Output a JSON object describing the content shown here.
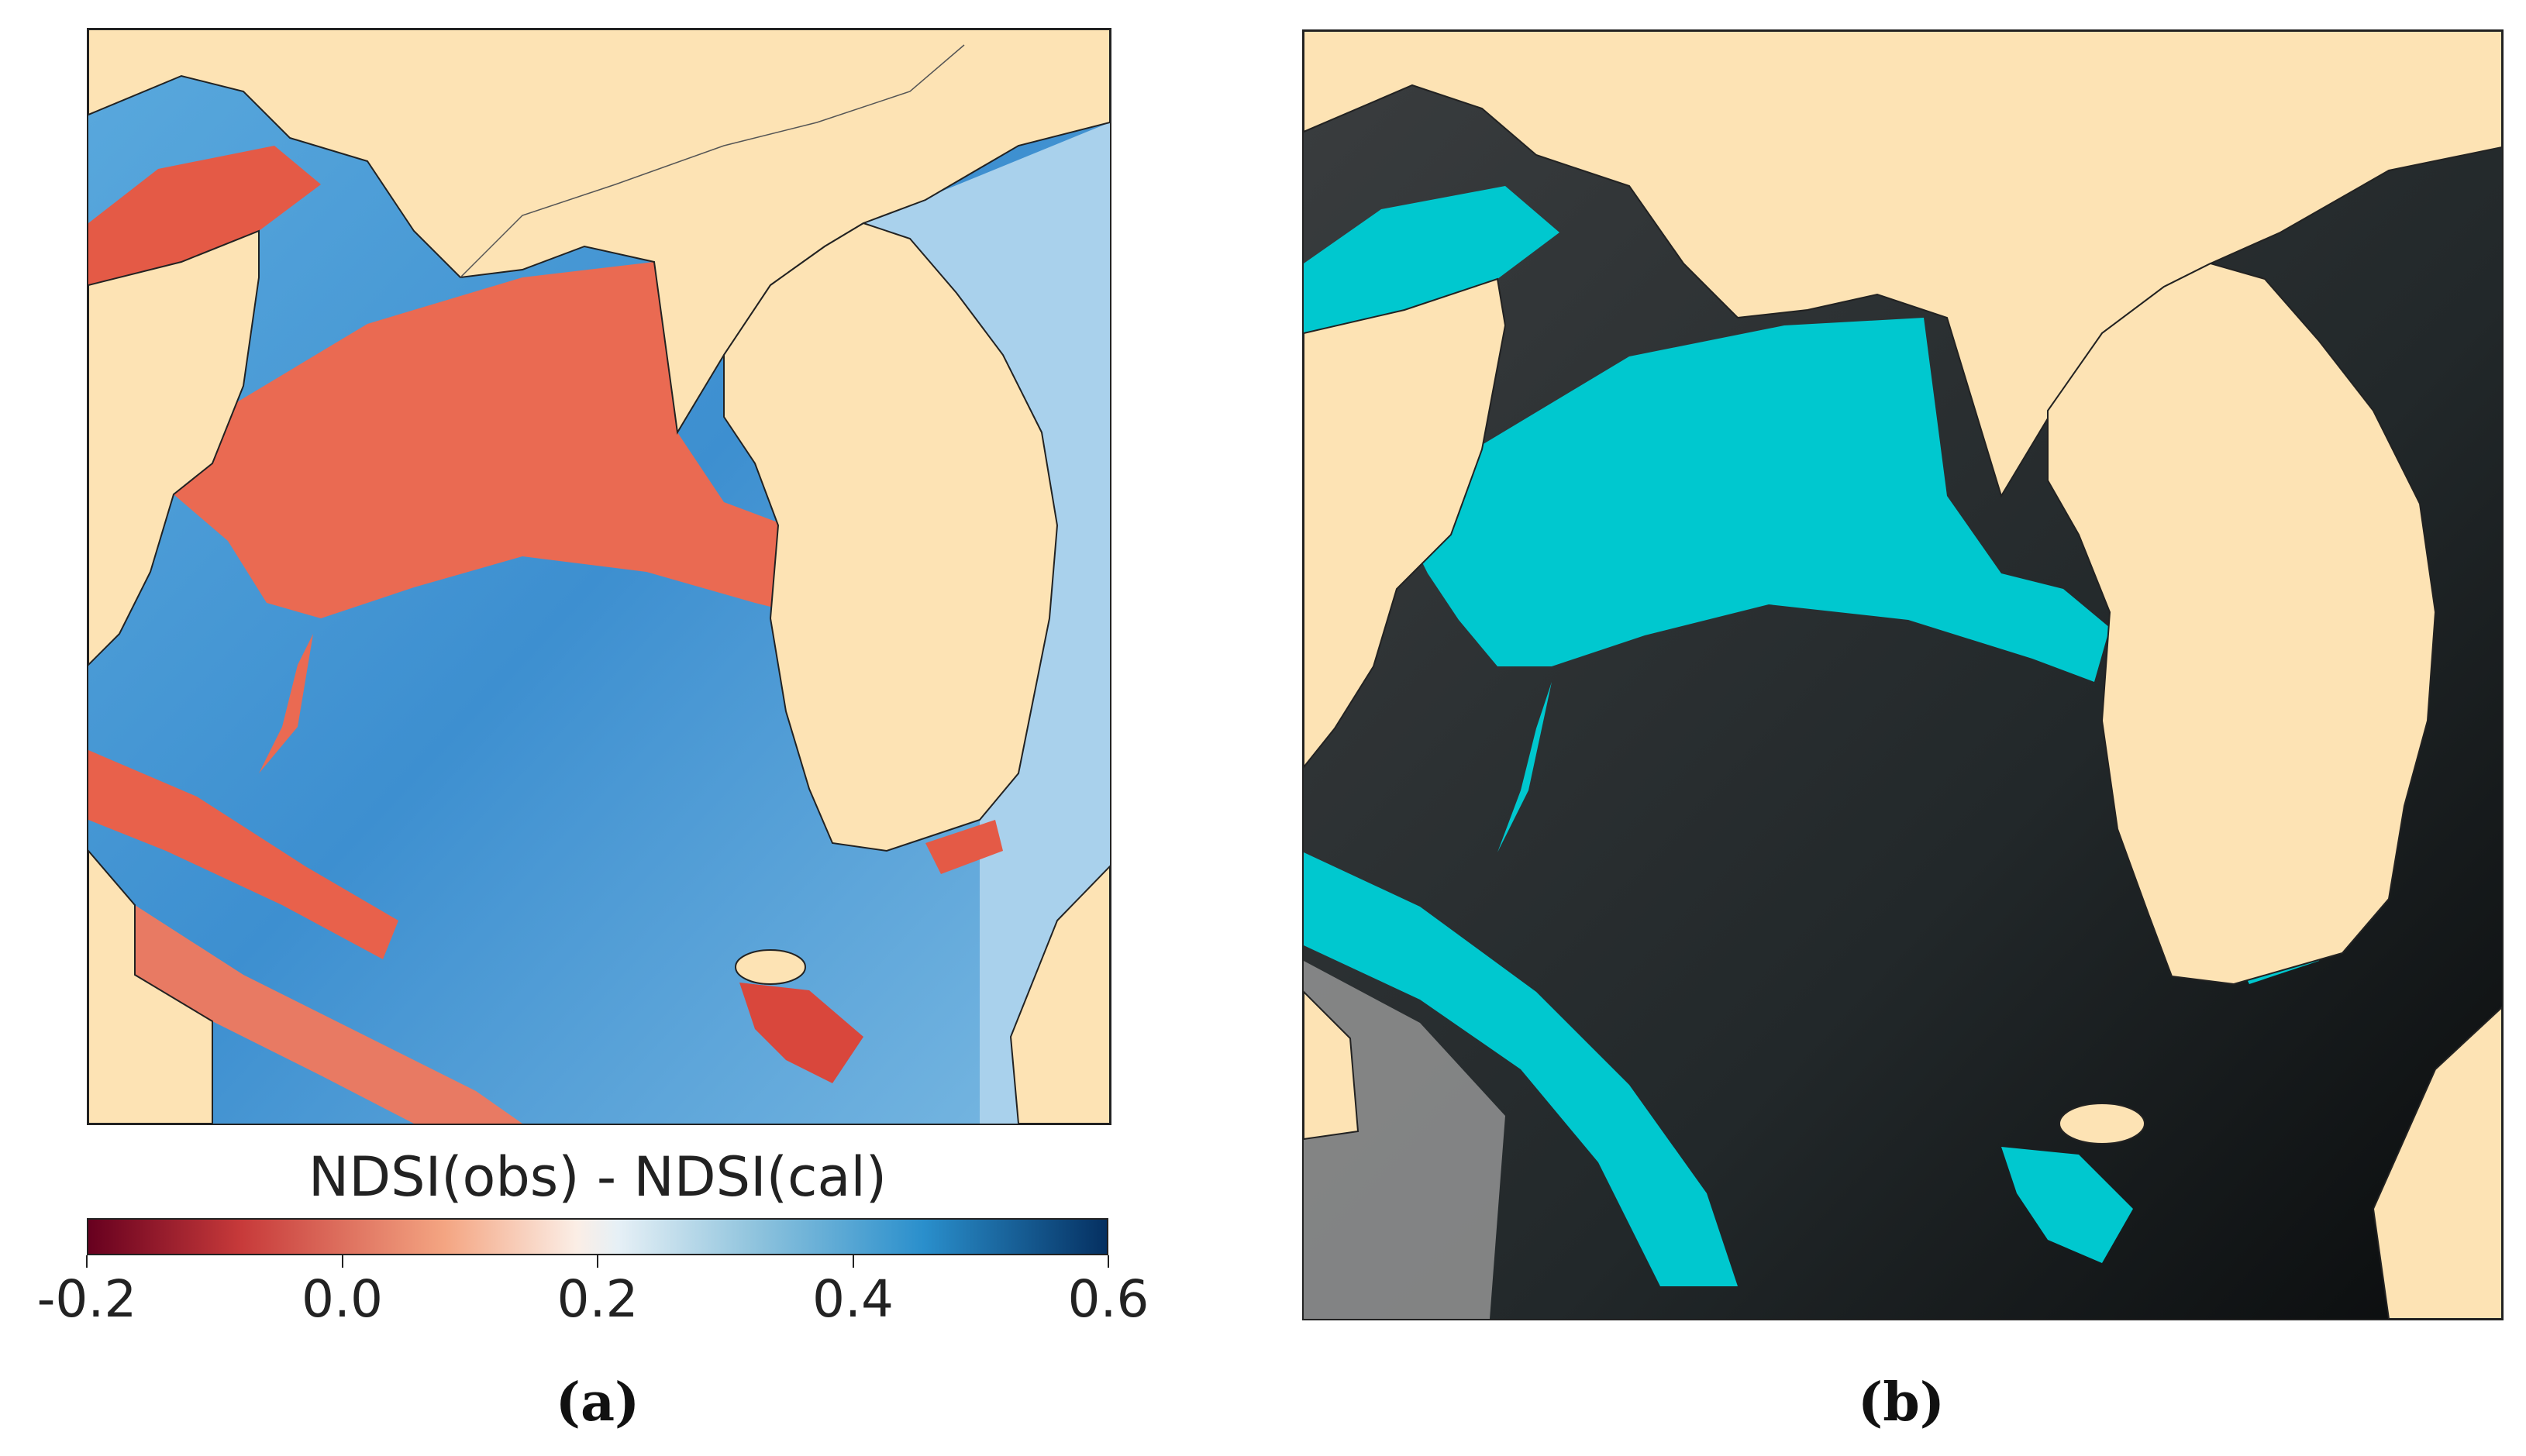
{
  "panel_a": {
    "caption": "(a)",
    "colorbar_label": "NDSI(obs) - NDSI(cal)",
    "colorbar_ticks": [
      "-0.2",
      "0.0",
      "0.2",
      "0.4",
      "0.6"
    ],
    "colorbar_range": [
      -0.2,
      0.6
    ],
    "colormap": "RdBu",
    "colors": {
      "land": "#fde3b4",
      "water_ice_low": "#e8604a",
      "water_high": "#4a9fd8",
      "coastline": "#222222"
    }
  },
  "panel_b": {
    "caption": "(b)",
    "colors": {
      "land": "#fde3b4",
      "sea_ice_mask": "#00c8cf",
      "sea_dark": "#2b2f31",
      "coastline": "#222222"
    }
  }
}
